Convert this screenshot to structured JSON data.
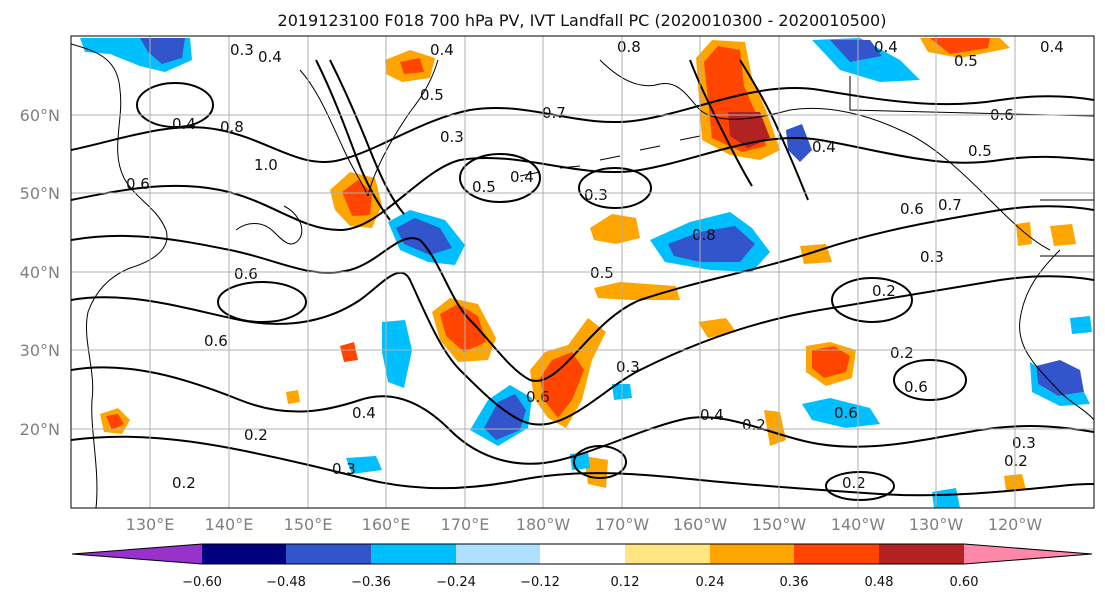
{
  "title": "2019123100 F018 700 hPa PV, IVT Landfall PC (2020010300 - 2020010500)",
  "lat_ticks": [
    "60°N",
    "50°N",
    "40°N",
    "30°N",
    "20°N"
  ],
  "lon_ticks": [
    "130°E",
    "140°E",
    "150°E",
    "160°E",
    "170°E",
    "180°W",
    "170°W",
    "160°W",
    "150°W",
    "140°W",
    "130°W",
    "120°W"
  ],
  "colorbar": {
    "colors": [
      "#9932cc",
      "#000080",
      "#3355cc",
      "#00bfff",
      "#b0e0ff",
      "#ffffff",
      "#ffe680",
      "#ffa500",
      "#ff4500",
      "#b22222",
      "#ff88aa"
    ],
    "tick_labels": [
      "−0.60",
      "−0.48",
      "−0.36",
      "−0.24",
      "−0.12",
      "0.12",
      "0.24",
      "0.36",
      "0.48",
      "0.60"
    ]
  },
  "contour_labels": [
    "0.4",
    "0.3",
    "0.4",
    "0.8",
    "0.4",
    "0.5",
    "0.4",
    "0.6",
    "0.4",
    "0.8",
    "1.0",
    "0.6",
    "0.5",
    "0.5",
    "0.4",
    "0.3",
    "0.7",
    "0.3",
    "0.6",
    "0.7",
    "0.5",
    "0.4",
    "0.6",
    "0.8",
    "0.5",
    "0.3",
    "0.2",
    "0.6",
    "0.2",
    "0.3",
    "0.6",
    "0.2",
    "0.4",
    "0.2",
    "0.4",
    "0.6",
    "0.3",
    "0.2",
    "0.3",
    "0.2",
    "0.2",
    "0.6"
  ]
}
